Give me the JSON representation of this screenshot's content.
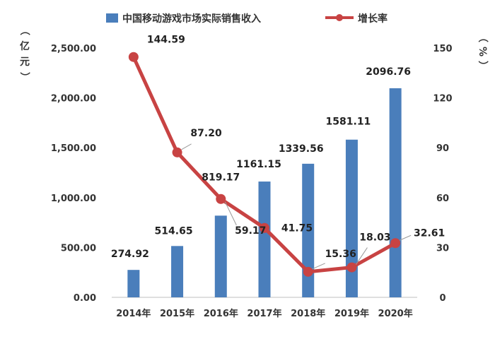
{
  "chart_data": {
    "type": "bar+line",
    "categories": [
      "2014年",
      "2015年",
      "2016年",
      "2017年",
      "2018年",
      "2019年",
      "2020年"
    ],
    "series": [
      {
        "name": "中国移动游戏市场实际销售收入",
        "type": "bar",
        "axis": "left",
        "color": "#4a7ebb",
        "values": [
          274.92,
          514.65,
          819.17,
          1161.15,
          1339.56,
          1581.11,
          2096.76
        ],
        "labels": [
          "274.92",
          "514.65",
          "819.17",
          "1161.15",
          "1339.56",
          "1581.11",
          "2096.76"
        ]
      },
      {
        "name": "增长率",
        "type": "line",
        "axis": "right",
        "color": "#c84343",
        "values": [
          144.59,
          87.2,
          59.17,
          41.75,
          15.36,
          18.03,
          32.61
        ],
        "labels": [
          "144.59",
          "87.20",
          "59.17",
          "41.75",
          "15.36",
          "18.03",
          "32.61"
        ]
      }
    ],
    "left_axis": {
      "unit_label": [
        "亿",
        "元"
      ],
      "ylim": [
        0,
        2500
      ],
      "ticks": [
        "0.00",
        "500.00",
        "1,000.00",
        "1,500.00",
        "2,000.00",
        "2,500.00"
      ]
    },
    "right_axis": {
      "unit_label": [
        "%"
      ],
      "ylim": [
        0,
        150
      ],
      "ticks": [
        "0",
        "30",
        "60",
        "90",
        "120",
        "150"
      ]
    },
    "grid": false,
    "legend_position": "top-center"
  }
}
